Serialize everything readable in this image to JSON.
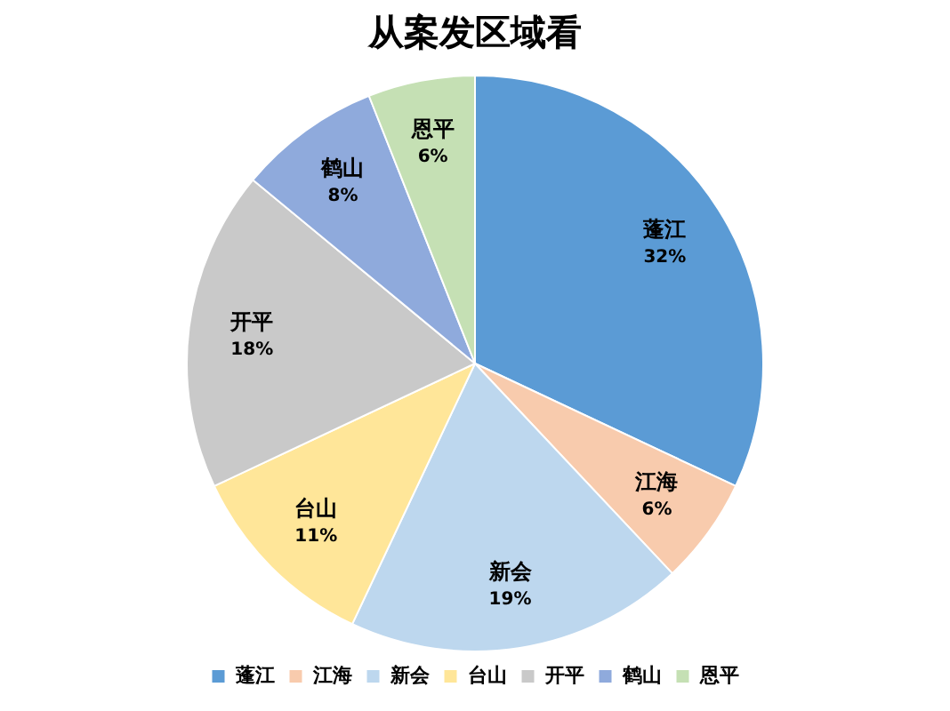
{
  "chart_data": {
    "type": "pie",
    "title": "从案发区域看",
    "categories": [
      "蓬江",
      "江海",
      "新会",
      "台山",
      "开平",
      "鹤山",
      "恩平"
    ],
    "values": [
      32,
      6,
      19,
      11,
      18,
      8,
      6
    ],
    "value_labels": [
      "32%",
      "6%",
      "19%",
      "11%",
      "18%",
      "8%",
      "6%"
    ],
    "colors": [
      "#5b9bd5",
      "#f8cbad",
      "#bdd7ee",
      "#ffe699",
      "#c9c9c9",
      "#8faadc",
      "#c5e0b4"
    ],
    "legend": "bottom"
  }
}
